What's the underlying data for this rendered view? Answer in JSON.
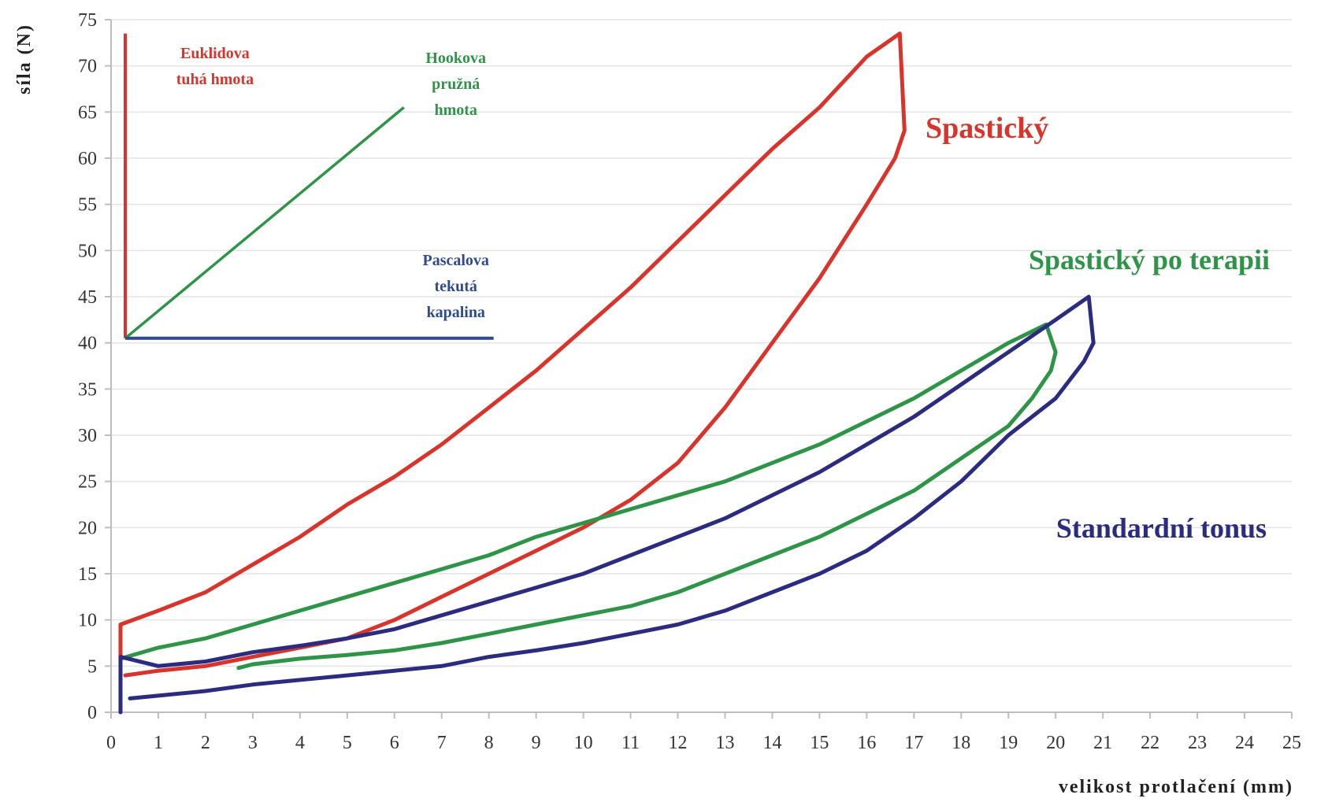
{
  "chart_data": {
    "type": "line",
    "title": "",
    "xlabel": "velikost protlačení (mm)",
    "ylabel": "síla (N)",
    "xlim": [
      0,
      25
    ],
    "ylim": [
      0,
      75
    ],
    "xticks": [
      "0",
      "1",
      "2",
      "3",
      "4",
      "5",
      "6",
      "7",
      "8",
      "9",
      "10",
      "11",
      "12",
      "13",
      "14",
      "15",
      "16",
      "17",
      "18",
      "19",
      "20",
      "21",
      "22",
      "23",
      "24",
      "25"
    ],
    "yticks": [
      "0",
      "5",
      "10",
      "15",
      "20",
      "25",
      "30",
      "35",
      "40",
      "45",
      "50",
      "55",
      "60",
      "65",
      "70",
      "75"
    ],
    "grid": "horizontal",
    "series": [
      {
        "name": "Spastický",
        "color": "#d9342b",
        "label_size": 38,
        "points": [
          [
            0.2,
            0
          ],
          [
            0.2,
            9.5
          ],
          [
            1,
            11
          ],
          [
            2,
            13
          ],
          [
            3,
            16
          ],
          [
            4,
            19
          ],
          [
            5,
            22.5
          ],
          [
            6,
            25.5
          ],
          [
            7,
            29
          ],
          [
            8,
            33
          ],
          [
            9,
            37
          ],
          [
            10,
            41.5
          ],
          [
            11,
            46
          ],
          [
            12,
            51
          ],
          [
            13,
            56
          ],
          [
            14,
            61
          ],
          [
            15,
            65.5
          ],
          [
            16,
            71
          ],
          [
            16.7,
            73.5
          ],
          [
            16.8,
            63
          ],
          [
            16.6,
            60
          ],
          [
            16,
            55
          ],
          [
            15,
            47
          ],
          [
            14,
            40
          ],
          [
            13,
            33
          ],
          [
            12,
            27
          ],
          [
            11,
            23
          ],
          [
            10,
            20
          ],
          [
            9,
            17.5
          ],
          [
            8,
            15
          ],
          [
            7,
            12.5
          ],
          [
            6,
            10
          ],
          [
            5,
            8
          ],
          [
            4,
            7
          ],
          [
            3,
            6
          ],
          [
            2,
            5
          ],
          [
            1,
            4.5
          ],
          [
            0.3,
            4
          ]
        ]
      },
      {
        "name": "Spastický po terapii",
        "color": "#2e9447",
        "label_size": 36,
        "points": [
          [
            0.2,
            5.8
          ],
          [
            1,
            7
          ],
          [
            2,
            8
          ],
          [
            3,
            9.5
          ],
          [
            4,
            11
          ],
          [
            5,
            12.5
          ],
          [
            6,
            14
          ],
          [
            7,
            15.5
          ],
          [
            8,
            17
          ],
          [
            9,
            19
          ],
          [
            10,
            20.5
          ],
          [
            11,
            22
          ],
          [
            12,
            23.5
          ],
          [
            13,
            25
          ],
          [
            14,
            27
          ],
          [
            15,
            29
          ],
          [
            16,
            31.5
          ],
          [
            17,
            34
          ],
          [
            18,
            37
          ],
          [
            19,
            40
          ],
          [
            19.8,
            42
          ],
          [
            20,
            39
          ],
          [
            19.9,
            37
          ],
          [
            19.5,
            34
          ],
          [
            19,
            31
          ],
          [
            18,
            27.5
          ],
          [
            17,
            24
          ],
          [
            16,
            21.5
          ],
          [
            15,
            19
          ],
          [
            14,
            17
          ],
          [
            13,
            15
          ],
          [
            12,
            13
          ],
          [
            11,
            11.5
          ],
          [
            10,
            10.5
          ],
          [
            9,
            9.5
          ],
          [
            8,
            8.5
          ],
          [
            7,
            7.5
          ],
          [
            6,
            6.7
          ],
          [
            5,
            6.2
          ],
          [
            4,
            5.8
          ],
          [
            3,
            5.2
          ],
          [
            2.7,
            4.8
          ]
        ]
      },
      {
        "name": "Standardní tonus",
        "color": "#2b2b80",
        "label_size": 36,
        "points": [
          [
            0.2,
            0
          ],
          [
            0.2,
            6
          ],
          [
            1,
            5
          ],
          [
            2,
            5.5
          ],
          [
            3,
            6.5
          ],
          [
            4,
            7.2
          ],
          [
            5,
            8
          ],
          [
            6,
            9
          ],
          [
            7,
            10.5
          ],
          [
            8,
            12
          ],
          [
            9,
            13.5
          ],
          [
            10,
            15
          ],
          [
            11,
            17
          ],
          [
            12,
            19
          ],
          [
            13,
            21
          ],
          [
            14,
            23.5
          ],
          [
            15,
            26
          ],
          [
            16,
            29
          ],
          [
            17,
            32
          ],
          [
            18,
            35.5
          ],
          [
            19,
            39
          ],
          [
            20,
            42.5
          ],
          [
            20.7,
            45
          ],
          [
            20.8,
            40
          ],
          [
            20.6,
            38
          ],
          [
            20,
            34
          ],
          [
            19,
            30
          ],
          [
            18,
            25
          ],
          [
            17,
            21
          ],
          [
            16,
            17.5
          ],
          [
            15,
            15
          ],
          [
            14,
            13
          ],
          [
            13,
            11
          ],
          [
            12,
            9.5
          ],
          [
            11,
            8.5
          ],
          [
            10,
            7.5
          ],
          [
            9,
            6.7
          ],
          [
            8,
            6
          ],
          [
            7,
            5
          ],
          [
            6,
            4.5
          ],
          [
            5,
            4
          ],
          [
            4,
            3.5
          ],
          [
            3,
            3
          ],
          [
            2,
            2.3
          ],
          [
            1,
            1.8
          ],
          [
            0.4,
            1.5
          ]
        ]
      }
    ],
    "inset": {
      "euclid_label": [
        "Euklidova",
        "tuhá hmota"
      ],
      "hooke_label": [
        "Hookova",
        "pružná",
        "hmota"
      ],
      "pascal_label": [
        "Pascalova",
        "tekutá",
        "kapalina"
      ],
      "euclid_color": "#d9342b",
      "hooke_color": "#2e9447",
      "pascal_color": "#2e4b8f"
    }
  }
}
